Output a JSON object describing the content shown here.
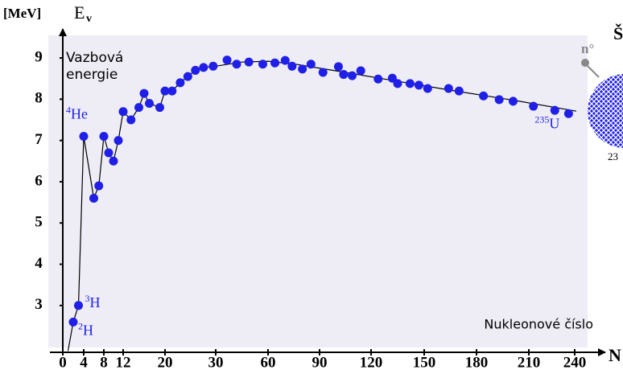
{
  "chart_data": {
    "type": "scatter",
    "y_unit": "[MeV]",
    "y_symbol": "E",
    "y_symbol_sub": "v",
    "y_title_lines": [
      "Vazbová",
      "energie"
    ],
    "x_label": "Nukleonové číslo",
    "xlim": [
      0,
      240
    ],
    "ylim": [
      1.85,
      9.65
    ],
    "xticks": [
      0,
      4,
      8,
      12,
      20,
      30,
      60,
      90,
      120,
      150,
      180,
      210,
      240
    ],
    "yticks": [
      3,
      4,
      5,
      6,
      7,
      8,
      9
    ],
    "series": [
      {
        "color": "#1f1fe8",
        "x": [
          2,
          3,
          4,
          6,
          7,
          8,
          9,
          10,
          11,
          12,
          13.5,
          15,
          16,
          17,
          19,
          20,
          21.4,
          23,
          24.5,
          26,
          27.6,
          29.5,
          36.5,
          42,
          49,
          57,
          64,
          70,
          74,
          80,
          85,
          92,
          101,
          104,
          109,
          114,
          124,
          132,
          135,
          142,
          147,
          152,
          164,
          170,
          184,
          193,
          201,
          213,
          227,
          236
        ],
        "values": [
          2.6,
          3.0,
          7.1,
          5.6,
          5.9,
          7.1,
          6.7,
          6.5,
          7.0,
          7.7,
          7.5,
          7.8,
          8.14,
          7.9,
          7.8,
          8.2,
          8.2,
          8.4,
          8.55,
          8.7,
          8.77,
          8.8,
          8.95,
          8.85,
          8.9,
          8.85,
          8.88,
          8.94,
          8.8,
          8.73,
          8.85,
          8.65,
          8.79,
          8.6,
          8.57,
          8.69,
          8.49,
          8.51,
          8.38,
          8.38,
          8.34,
          8.26,
          8.26,
          8.2,
          8.08,
          7.99,
          7.95,
          7.83,
          7.73,
          7.65
        ]
      }
    ],
    "trend": {
      "color": "#000000",
      "x": [
        1,
        2,
        3,
        4,
        6,
        7,
        8,
        9,
        10,
        11,
        12,
        13.5,
        15,
        16,
        17,
        19,
        20,
        21.4,
        23,
        24.5,
        26,
        27.6,
        30,
        44.7,
        60,
        77,
        105,
        133,
        165,
        202,
        241
      ],
      "values": [
        1.9,
        2.6,
        3.0,
        7.1,
        5.6,
        5.9,
        7.1,
        6.7,
        6.5,
        7.0,
        7.7,
        7.5,
        7.8,
        8.14,
        7.9,
        7.8,
        8.2,
        8.2,
        8.4,
        8.55,
        8.7,
        8.77,
        8.8,
        8.9,
        8.92,
        8.84,
        8.65,
        8.45,
        8.22,
        7.97,
        7.71
      ]
    },
    "annotations": [
      {
        "sup": "4",
        "text": "He",
        "x": 4,
        "y": 7.1
      },
      {
        "sup": "3",
        "text": "H",
        "x": 3,
        "y": 3.0
      },
      {
        "sup": "2",
        "text": "H",
        "x": 2,
        "y": 2.6
      },
      {
        "sup": "235",
        "text": "U",
        "x": 236,
        "y": 7.65
      }
    ],
    "side_texts": {
      "top": "Š",
      "neutron": "n°",
      "nucleus": "23",
      "axis_end": "N"
    }
  }
}
